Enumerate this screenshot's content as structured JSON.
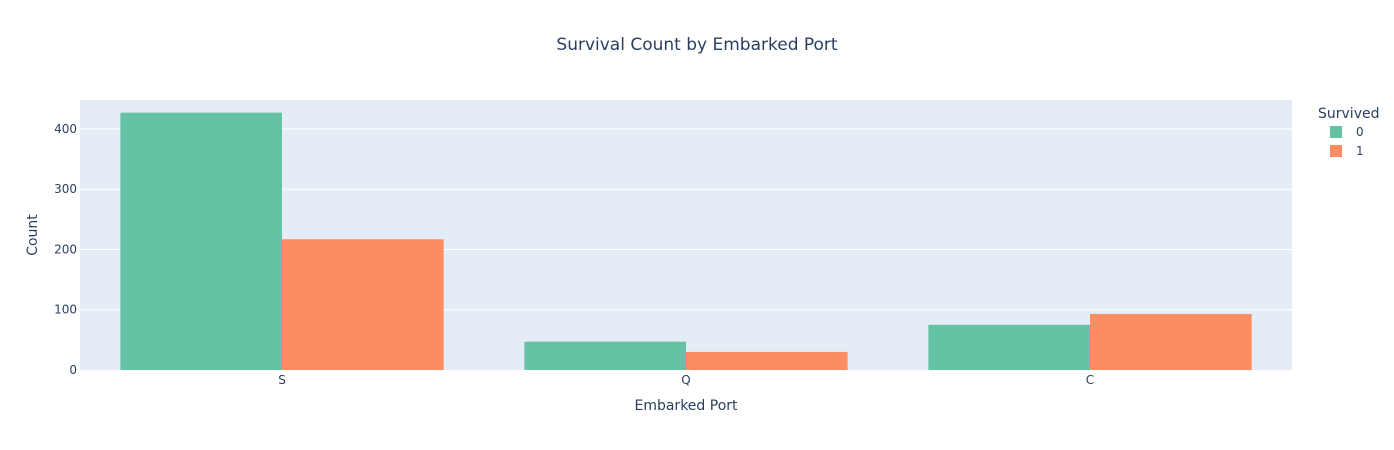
{
  "chart_data": {
    "type": "bar",
    "title": "Survival Count by Embarked Port",
    "xlabel": "Embarked Port",
    "ylabel": "Count",
    "categories": [
      "S",
      "Q",
      "C"
    ],
    "series": [
      {
        "name": "0",
        "values": [
          427,
          47,
          75
        ],
        "color": "#66c2a5"
      },
      {
        "name": "1",
        "values": [
          217,
          30,
          93
        ],
        "color": "#fc8d62"
      }
    ],
    "ylim": [
      0,
      448
    ],
    "yticks": [
      0,
      100,
      200,
      300,
      400
    ],
    "grid": true,
    "background": "#e5ecf6",
    "legend": {
      "title": "Survived",
      "placement": "top-right"
    }
  }
}
